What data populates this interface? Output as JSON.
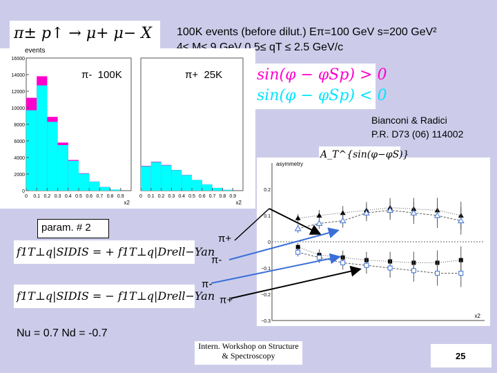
{
  "header": {
    "process_formula": "π± p↑ → μ+ μ− X",
    "line1": "100K events (before dilut.)    Eπ=100 GeV  s=200 GeV²",
    "line2": "4≤ M≤ 9 GeV   0.5≤ qT ≤ 2.5 GeV/c"
  },
  "legend": {
    "positive_label": "sin(φ − φSp) > 0",
    "negative_label": "sin(φ − φSp) < 0",
    "positive_color": "#ff00cc",
    "negative_color": "#00ffff"
  },
  "reference": {
    "line1": "Bianconi & Radici",
    "line2": "P.R. D73 (06) 114002"
  },
  "asym_label": "A_T^{sin(φ−φS)}",
  "param_label": "param. # 2",
  "eq_sidis_plus": "f1T⊥q|SIDIS = + f1T⊥q|Drell−Yan",
  "eq_sidis_minus": "f1T⊥q|SIDIS = − f1T⊥q|Drell−Yan",
  "pion_labels": {
    "pi_plus_top": "π+",
    "pi_minus_top": "π-",
    "pi_minus_bottom": "π-",
    "pi_plus_bottom": "π+"
  },
  "n_values": "Nu = 0.7  Nd = -0.7",
  "footer": {
    "workshop": "Intern. Workshop on Structure & Spectroscopy",
    "page_number": "25"
  },
  "chart_data": [
    {
      "type": "bar",
      "panel_label": "π-  100K",
      "ylabel": "events",
      "xlabel": "x2",
      "ylim": [
        0,
        16000
      ],
      "yticks": [
        0,
        2000,
        4000,
        6000,
        8000,
        10000,
        12000,
        14000,
        16000
      ],
      "xlim": [
        0,
        1
      ],
      "xticks": [
        "0",
        "0.1",
        "0.2",
        "0.3",
        "0.4",
        "0.5",
        "0.6",
        "0.7",
        "0.8",
        "0.9"
      ],
      "bins": [
        0.1,
        0.2,
        0.3,
        0.4,
        0.5,
        0.6,
        0.7,
        0.8,
        0.9
      ],
      "series": [
        {
          "name": "sin(φ − φSp) > 0",
          "values": [
            11200,
            13800,
            8900,
            5800,
            3700,
            2100,
            1100,
            450,
            130
          ]
        },
        {
          "name": "sin(φ − φSp) < 0",
          "values": [
            9700,
            12700,
            8300,
            5500,
            3600,
            2050,
            1080,
            440,
            125
          ]
        }
      ]
    },
    {
      "type": "bar",
      "panel_label": "π+  25K",
      "xlabel": "x2",
      "ylim": [
        0,
        16000
      ],
      "xlim": [
        0,
        1
      ],
      "xticks": [
        "0",
        "0.1",
        "0.2",
        "0.3",
        "0.4",
        "0.5",
        "0.6",
        "0.7",
        "0.8",
        "0.9"
      ],
      "bins": [
        0.1,
        0.2,
        0.3,
        0.4,
        0.5,
        0.6,
        0.7,
        0.8,
        0.9
      ],
      "series": [
        {
          "name": "sin(φ − φSp) > 0",
          "values": [
            3000,
            3500,
            3100,
            2500,
            1900,
            1300,
            760,
            340,
            100
          ]
        },
        {
          "name": "sin(φ − φSp) < 0",
          "values": [
            2950,
            3450,
            3050,
            2480,
            1880,
            1290,
            750,
            335,
            98
          ]
        }
      ]
    },
    {
      "type": "scatter",
      "title": "",
      "ylabel": "asymmetry",
      "xlabel": "x2",
      "ylim": [
        -0.3,
        0.3
      ],
      "yticks": [
        "0.2",
        "0.1",
        "0",
        "−0.1",
        "−0.2",
        "−0.3"
      ],
      "xlim": [
        0.05,
        0.95
      ],
      "series": [
        {
          "name": "π+ param#2 (+)",
          "marker": "triangle",
          "x": [
            0.16,
            0.25,
            0.35,
            0.45,
            0.55,
            0.65,
            0.75,
            0.85
          ],
          "y": [
            0.09,
            0.1,
            0.11,
            0.12,
            0.13,
            0.125,
            0.12,
            0.1
          ]
        },
        {
          "name": "π- param#2 (+)",
          "marker": "open-triangle",
          "x": [
            0.16,
            0.25,
            0.35,
            0.45,
            0.55,
            0.65,
            0.75,
            0.85
          ],
          "y": [
            0.05,
            0.07,
            0.08,
            0.11,
            0.12,
            0.11,
            0.1,
            0.08
          ]
        },
        {
          "name": "π- param#2 (−)",
          "marker": "square",
          "x": [
            0.16,
            0.25,
            0.35,
            0.45,
            0.55,
            0.65,
            0.75,
            0.85
          ],
          "y": [
            -0.02,
            -0.05,
            -0.06,
            -0.07,
            -0.075,
            -0.08,
            -0.08,
            -0.07
          ]
        },
        {
          "name": "π+ param#2 (−)",
          "marker": "open-square",
          "x": [
            0.16,
            0.25,
            0.35,
            0.45,
            0.55,
            0.65,
            0.75,
            0.85
          ],
          "y": [
            -0.04,
            -0.06,
            -0.08,
            -0.09,
            -0.1,
            -0.11,
            -0.12,
            -0.12
          ]
        }
      ]
    }
  ]
}
